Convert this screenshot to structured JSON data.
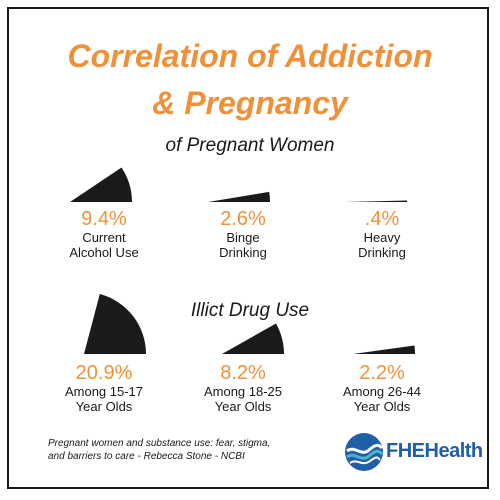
{
  "title_line1": "Correlation of Addiction",
  "title_line2": "& Pregnancy",
  "subtitle": "of Pregnant Women",
  "section2_title": "Illict Drug Use",
  "footnote_line1": "Pregnant women and substance use: fear, stigma,",
  "footnote_line2": "and barriers to care - Rebecca Stone - NCBI",
  "logo_text": "FHEHealth",
  "colors": {
    "accent": "#f0913a",
    "ink": "#1a1a1a",
    "logo_blue": "#1f5fa8",
    "logo_teal": "#4fb3c8"
  },
  "chart_data": [
    {
      "type": "pie",
      "title": "of Pregnant Women",
      "categories": [
        "Current Alcohol Use",
        "Binge Drinking",
        "Heavy Drinking"
      ],
      "labels": [
        "9.4%",
        "2.6%",
        ".4%"
      ],
      "label_lines": [
        [
          "Current",
          "Alcohol Use"
        ],
        [
          "Binge",
          "Drinking"
        ],
        [
          "Heavy",
          "Drinking"
        ]
      ],
      "values": [
        9.4,
        2.6,
        0.4
      ]
    },
    {
      "type": "pie",
      "title": "Illict Drug Use",
      "categories": [
        "Among 15-17 Year Olds",
        "Among 18-25 Year Olds",
        "Among 26-44 Year Olds"
      ],
      "labels": [
        "20.9%",
        "8.2%",
        "2.2%"
      ],
      "label_lines": [
        [
          "Among 15-17",
          "Year Olds"
        ],
        [
          "Among 18-25",
          "Year Olds"
        ],
        [
          "Among 26-44",
          "Year Olds"
        ]
      ],
      "values": [
        20.9,
        8.2,
        2.2
      ]
    }
  ]
}
